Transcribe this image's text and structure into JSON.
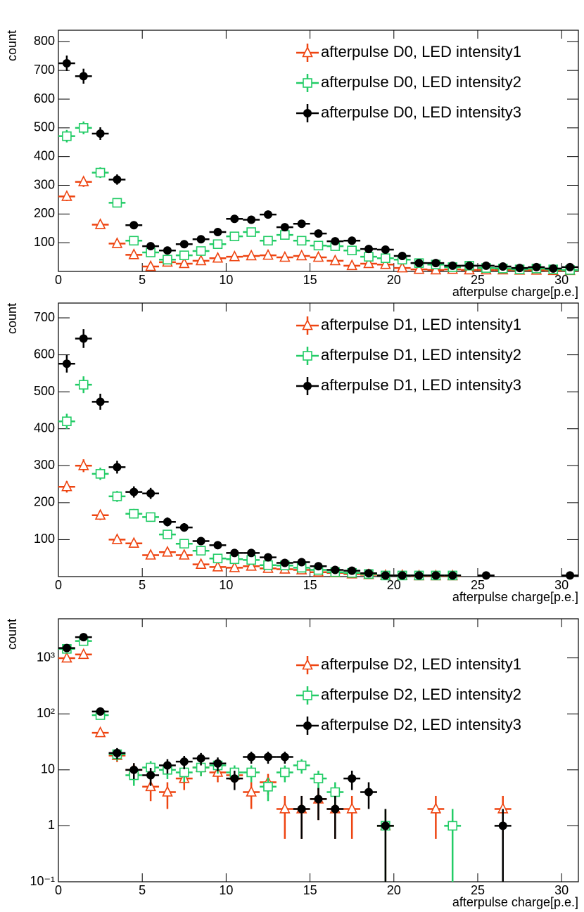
{
  "chart_data": [
    {
      "type": "scatter",
      "x_label": "afterpulse charge[p.e.]",
      "y_label": "count",
      "x": [
        0.5,
        1.5,
        2.5,
        3.5,
        4.5,
        5.5,
        6.5,
        7.5,
        8.5,
        9.5,
        10.5,
        11.5,
        12.5,
        13.5,
        14.5,
        15.5,
        16.5,
        17.5,
        18.5,
        19.5,
        20.5,
        21.5,
        22.5,
        23.5,
        24.5,
        25.5,
        26.5,
        27.5,
        28.5,
        29.5,
        30.5
      ],
      "xlim": [
        0,
        31
      ],
      "xticks": [
        0,
        5,
        10,
        15,
        20,
        25,
        30
      ],
      "ylim": [
        0,
        840
      ],
      "yticks": [
        100,
        200,
        300,
        400,
        500,
        600,
        700,
        800
      ],
      "log_y": false,
      "error_bars": "poisson",
      "legend": "top-right",
      "series": [
        {
          "name": "afterpulse D0, LED intensity1",
          "color": "#ee4411",
          "marker": "open-triangle",
          "values": [
            261,
            312,
            163,
            97,
            58,
            17,
            32,
            27,
            37,
            46,
            51,
            54,
            56,
            49,
            54,
            49,
            37,
            20,
            27,
            24,
            12,
            7,
            5,
            7,
            5,
            5,
            5,
            4,
            4,
            3,
            3
          ]
        },
        {
          "name": "afterpulse D0, LED intensity2",
          "color": "#22cc66",
          "marker": "open-square",
          "values": [
            471,
            500,
            344,
            239,
            107,
            66,
            41,
            56,
            71,
            95,
            122,
            137,
            107,
            127,
            107,
            90,
            88,
            73,
            51,
            46,
            41,
            29,
            24,
            15,
            20,
            12,
            10,
            7,
            10,
            7,
            5
          ]
        },
        {
          "name": "afterpulse D0, LED intensity3",
          "color": "#000000",
          "marker": "filled-circle",
          "values": [
            725,
            680,
            480,
            320,
            161,
            88,
            73,
            95,
            112,
            137,
            183,
            180,
            198,
            154,
            166,
            132,
            105,
            107,
            78,
            76,
            54,
            29,
            29,
            20,
            20,
            20,
            17,
            12,
            15,
            10,
            15
          ]
        }
      ]
    },
    {
      "type": "scatter",
      "x_label": "afterpulse charge[p.e.]",
      "y_label": "count",
      "x": [
        0.5,
        1.5,
        2.5,
        3.5,
        4.5,
        5.5,
        6.5,
        7.5,
        8.5,
        9.5,
        10.5,
        11.5,
        12.5,
        13.5,
        14.5,
        15.5,
        16.5,
        17.5,
        18.5,
        19.5,
        20.5,
        21.5,
        22.5,
        23.5,
        24.5,
        25.5,
        26.5,
        27.5,
        28.5,
        29.5,
        30.5
      ],
      "xlim": [
        0,
        31
      ],
      "xticks": [
        0,
        5,
        10,
        15,
        20,
        25,
        30
      ],
      "ylim": [
        0,
        740
      ],
      "yticks": [
        100,
        200,
        300,
        400,
        500,
        600,
        700
      ],
      "log_y": false,
      "error_bars": "poisson",
      "legend": "top-right",
      "series": [
        {
          "name": "afterpulse D1, LED intensity1",
          "color": "#ee4411",
          "marker": "open-triangle",
          "values": [
            243,
            300,
            166,
            100,
            90,
            58,
            66,
            58,
            33,
            26,
            24,
            28,
            22,
            20,
            18,
            12,
            10,
            7,
            5,
            3,
            3,
            2,
            2,
            2,
            null,
            null,
            null,
            null,
            null,
            null,
            null
          ]
        },
        {
          "name": "afterpulse D1, LED intensity2",
          "color": "#22cc66",
          "marker": "open-square",
          "values": [
            420,
            519,
            278,
            217,
            170,
            161,
            114,
            89,
            70,
            49,
            47,
            45,
            31,
            30,
            24,
            18,
            12,
            10,
            7,
            3,
            3,
            3,
            3,
            3,
            null,
            null,
            null,
            null,
            null,
            null,
            null
          ]
        },
        {
          "name": "afterpulse D1, LED intensity3",
          "color": "#000000",
          "marker": "filled-circle",
          "values": [
            576,
            644,
            473,
            296,
            229,
            225,
            148,
            133,
            96,
            85,
            64,
            64,
            52,
            37,
            39,
            28,
            18,
            16,
            9,
            3,
            3,
            3,
            3,
            3,
            null,
            3,
            null,
            null,
            null,
            null,
            3
          ]
        }
      ]
    },
    {
      "type": "scatter",
      "x_label": "afterpulse charge[p.e.]",
      "y_label": "count",
      "x": [
        0.5,
        1.5,
        2.5,
        3.5,
        4.5,
        5.5,
        6.5,
        7.5,
        8.5,
        9.5,
        10.5,
        11.5,
        12.5,
        13.5,
        14.5,
        15.5,
        16.5,
        17.5,
        18.5,
        19.5,
        20.5,
        21.5,
        22.5,
        23.5,
        24.5,
        25.5,
        26.5,
        27.5,
        28.5,
        29.5,
        30.5
      ],
      "xlim": [
        0,
        31
      ],
      "xticks": [
        0,
        5,
        10,
        15,
        20,
        25,
        30
      ],
      "ylim": [
        0.1,
        5000
      ],
      "yticks": [
        {
          "value": 0.1,
          "label": "10⁻¹"
        },
        1,
        10,
        {
          "value": 100,
          "label": "10²"
        },
        {
          "value": 1000,
          "label": "10³"
        }
      ],
      "log_y": true,
      "error_bars": "poisson",
      "legend": "top-right",
      "series": [
        {
          "name": "afterpulse D2, LED intensity1",
          "color": "#ee4411",
          "marker": "open-triangle",
          "values": [
            990,
            1150,
            46,
            18,
            10,
            5,
            4,
            7,
            11,
            9,
            8,
            4,
            6,
            2,
            2,
            3,
            2,
            2,
            null,
            1,
            null,
            null,
            2,
            null,
            null,
            null,
            2,
            null,
            null,
            null,
            null
          ]
        },
        {
          "name": "afterpulse D2, LED intensity2",
          "color": "#22cc66",
          "marker": "open-square",
          "values": [
            1450,
            2000,
            95,
            19,
            8,
            11,
            10,
            9,
            11,
            12,
            9,
            9,
            5,
            9,
            12,
            7,
            4,
            null,
            null,
            1,
            null,
            null,
            null,
            1,
            null,
            null,
            null,
            null,
            null,
            null,
            null
          ]
        },
        {
          "name": "afterpulse D2, LED intensity3",
          "color": "#000000",
          "marker": "filled-circle",
          "values": [
            1500,
            2350,
            110,
            20,
            10,
            8,
            12,
            14,
            16,
            13,
            7,
            17,
            17,
            17,
            2,
            3,
            2,
            7,
            4,
            1,
            null,
            null,
            null,
            null,
            null,
            null,
            1,
            null,
            null,
            null,
            null
          ]
        }
      ]
    }
  ]
}
